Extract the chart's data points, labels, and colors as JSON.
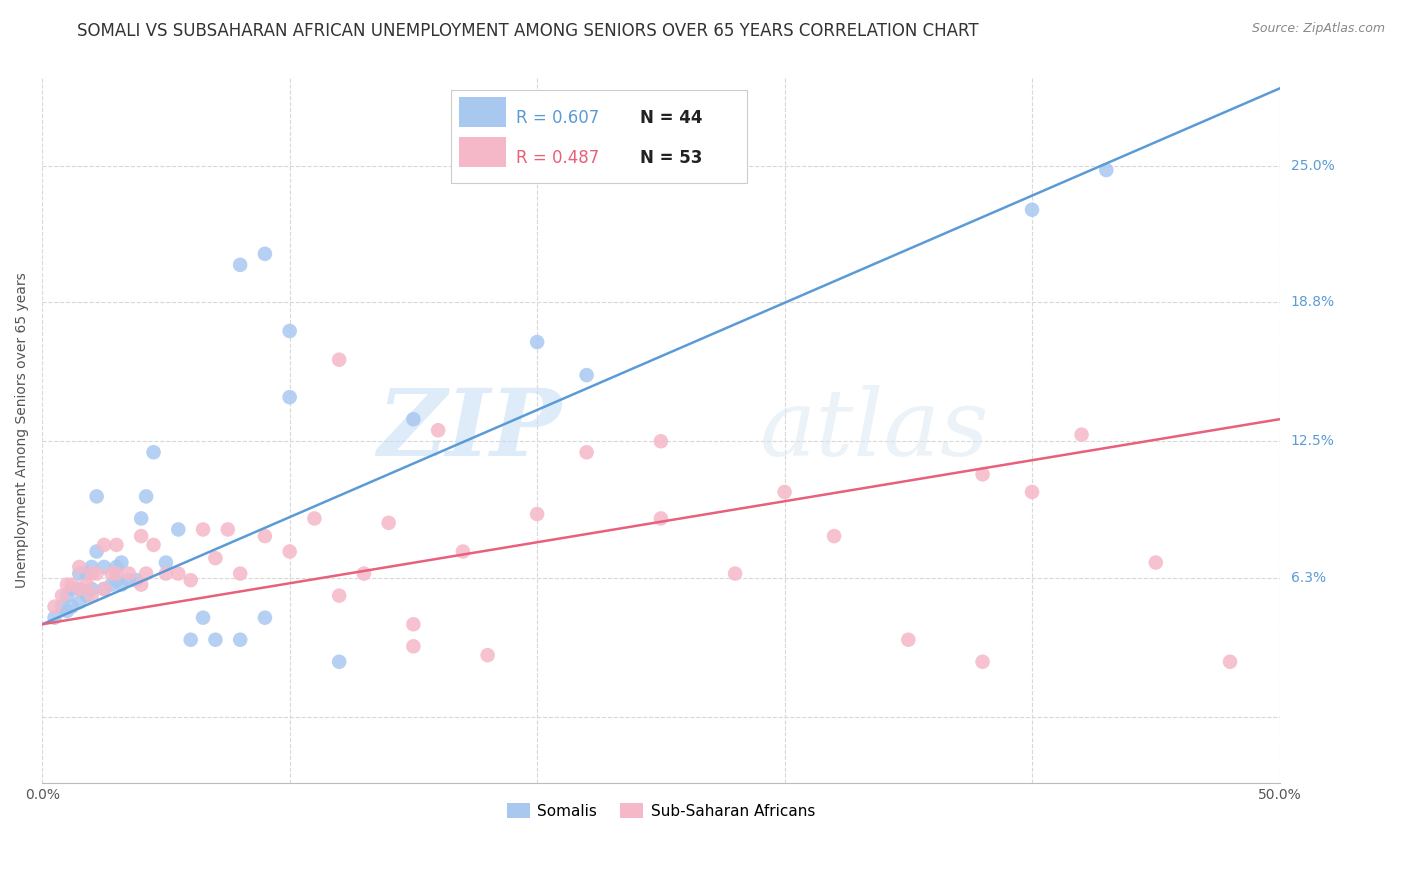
{
  "title": "SOMALI VS SUBSAHARAN AFRICAN UNEMPLOYMENT AMONG SENIORS OVER 65 YEARS CORRELATION CHART",
  "source": "Source: ZipAtlas.com",
  "ylabel": "Unemployment Among Seniors over 65 years",
  "xlim": [
    0.0,
    0.5
  ],
  "ylim": [
    -0.03,
    0.29
  ],
  "xtick_positions": [
    0.0,
    0.1,
    0.2,
    0.3,
    0.4,
    0.5
  ],
  "xticklabels": [
    "0.0%",
    "",
    "",
    "",
    "",
    "50.0%"
  ],
  "ytick_positions": [
    0.0,
    0.063,
    0.125,
    0.188,
    0.25
  ],
  "ytick_labels": [
    "",
    "6.3%",
    "12.5%",
    "18.8%",
    "25.0%"
  ],
  "background_color": "#ffffff",
  "grid_color": "#d8d8d8",
  "somali_color": "#a8c8f0",
  "subsaharan_color": "#f5b8c8",
  "somali_line_color": "#5b9bd5",
  "subsaharan_line_color": "#e8607a",
  "legend_R_somali": "R = 0.607",
  "legend_N_somali": "N = 44",
  "legend_R_subsaharan": "R = 0.487",
  "legend_N_subsaharan": "N = 53",
  "legend_label_somali": "Somalis",
  "legend_label_subsaharan": "Sub-Saharan Africans",
  "somali_scatter_x": [
    0.005,
    0.008,
    0.01,
    0.01,
    0.012,
    0.012,
    0.015,
    0.015,
    0.015,
    0.018,
    0.018,
    0.02,
    0.02,
    0.022,
    0.022,
    0.025,
    0.025,
    0.028,
    0.03,
    0.03,
    0.032,
    0.032,
    0.035,
    0.038,
    0.04,
    0.042,
    0.045,
    0.05,
    0.055,
    0.06,
    0.065,
    0.07,
    0.08,
    0.09,
    0.1,
    0.1,
    0.12,
    0.15,
    0.2,
    0.22,
    0.4,
    0.43,
    0.08,
    0.09
  ],
  "somali_scatter_y": [
    0.045,
    0.05,
    0.048,
    0.055,
    0.05,
    0.058,
    0.052,
    0.058,
    0.065,
    0.055,
    0.065,
    0.058,
    0.068,
    0.075,
    0.1,
    0.058,
    0.068,
    0.06,
    0.062,
    0.068,
    0.06,
    0.07,
    0.062,
    0.062,
    0.09,
    0.1,
    0.12,
    0.07,
    0.085,
    0.035,
    0.045,
    0.035,
    0.205,
    0.21,
    0.175,
    0.145,
    0.025,
    0.135,
    0.17,
    0.155,
    0.23,
    0.248,
    0.035,
    0.045
  ],
  "subsaharan_scatter_x": [
    0.005,
    0.008,
    0.01,
    0.012,
    0.015,
    0.015,
    0.018,
    0.02,
    0.02,
    0.022,
    0.025,
    0.025,
    0.028,
    0.03,
    0.03,
    0.035,
    0.04,
    0.04,
    0.042,
    0.045,
    0.05,
    0.055,
    0.06,
    0.065,
    0.07,
    0.075,
    0.08,
    0.09,
    0.1,
    0.11,
    0.12,
    0.13,
    0.14,
    0.15,
    0.15,
    0.16,
    0.17,
    0.18,
    0.2,
    0.22,
    0.25,
    0.28,
    0.3,
    0.32,
    0.35,
    0.38,
    0.4,
    0.42,
    0.45,
    0.48,
    0.12,
    0.25,
    0.38
  ],
  "subsaharan_scatter_y": [
    0.05,
    0.055,
    0.06,
    0.06,
    0.058,
    0.068,
    0.06,
    0.055,
    0.065,
    0.065,
    0.058,
    0.078,
    0.065,
    0.065,
    0.078,
    0.065,
    0.06,
    0.082,
    0.065,
    0.078,
    0.065,
    0.065,
    0.062,
    0.085,
    0.072,
    0.085,
    0.065,
    0.082,
    0.075,
    0.09,
    0.055,
    0.065,
    0.088,
    0.032,
    0.042,
    0.13,
    0.075,
    0.028,
    0.092,
    0.12,
    0.09,
    0.065,
    0.102,
    0.082,
    0.035,
    0.025,
    0.102,
    0.128,
    0.07,
    0.025,
    0.162,
    0.125,
    0.11
  ],
  "somali_line_x": [
    0.0,
    0.5
  ],
  "somali_line_y": [
    0.042,
    0.285
  ],
  "subsaharan_line_x": [
    0.0,
    0.5
  ],
  "subsaharan_line_y": [
    0.042,
    0.135
  ],
  "watermark_zip": "ZIP",
  "watermark_atlas": "atlas",
  "title_fontsize": 12,
  "axis_label_fontsize": 10,
  "tick_fontsize": 10,
  "legend_fontsize": 12
}
